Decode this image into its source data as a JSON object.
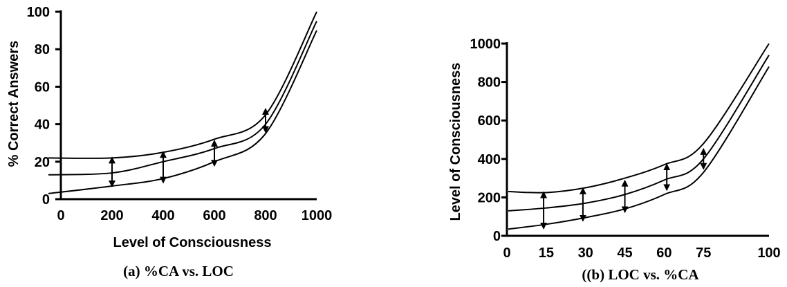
{
  "chart_data": [
    {
      "type": "line",
      "caption": "(a) %CA vs.  LOC",
      "xlabel": "Level of Consciousness",
      "ylabel": "% Correct Answers",
      "xlim": [
        0,
        1000
      ],
      "ylim": [
        0,
        100
      ],
      "xticks": [
        "0",
        "200",
        "400",
        "600",
        "800",
        "1000"
      ],
      "yticks": [
        "0",
        "20",
        "40",
        "60",
        "80",
        "100"
      ],
      "series": [
        {
          "x": [
            0,
            200,
            400,
            600,
            800,
            1000
          ],
          "y": [
            22,
            22,
            25,
            32,
            45,
            100
          ]
        },
        {
          "x": [
            0,
            200,
            400,
            600,
            800,
            1000
          ],
          "y": [
            13,
            14,
            20,
            27,
            40,
            95
          ]
        },
        {
          "x": [
            0,
            200,
            400,
            600,
            800,
            1000
          ],
          "y": [
            3,
            7,
            11,
            20,
            35,
            90
          ]
        }
      ],
      "arrows": [
        {
          "x": 200,
          "y_top": 22,
          "y_bottom": 7
        },
        {
          "x": 400,
          "y_top": 25,
          "y_bottom": 9
        },
        {
          "x": 600,
          "y_top": 31,
          "y_bottom": 18
        },
        {
          "x": 800,
          "y_top": 48,
          "y_bottom": 36
        }
      ]
    },
    {
      "type": "line",
      "caption": "((b) LOC vs. %CA",
      "xlabel": "",
      "ylabel": "Level of Consciousness",
      "xlim": [
        0,
        100
      ],
      "ylim": [
        0,
        1000
      ],
      "xticks": [
        "0",
        "15",
        "30",
        "45",
        "60",
        "75",
        "100"
      ],
      "yticks": [
        "0",
        "200",
        "400",
        "600",
        "800",
        "1000"
      ],
      "series": [
        {
          "x": [
            0,
            15,
            30,
            45,
            60,
            75,
            100
          ],
          "y": [
            230,
            225,
            250,
            300,
            370,
            480,
            1000
          ]
        },
        {
          "x": [
            0,
            15,
            30,
            45,
            60,
            75,
            100
          ],
          "y": [
            130,
            145,
            170,
            215,
            290,
            400,
            940
          ]
        },
        {
          "x": [
            0,
            15,
            30,
            45,
            60,
            75,
            100
          ],
          "y": [
            35,
            60,
            95,
            140,
            215,
            330,
            880
          ]
        }
      ],
      "arrows": [
        {
          "x": 14,
          "y_top": 225,
          "y_bottom": 40
        },
        {
          "x": 29,
          "y_top": 245,
          "y_bottom": 80
        },
        {
          "x": 45,
          "y_top": 285,
          "y_bottom": 125
        },
        {
          "x": 61,
          "y_top": 370,
          "y_bottom": 240
        },
        {
          "x": 75,
          "y_top": 450,
          "y_bottom": 350
        }
      ]
    }
  ]
}
